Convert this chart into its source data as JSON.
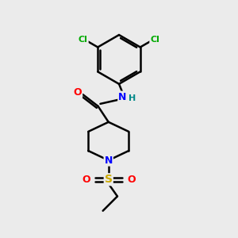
{
  "bg_color": "#ebebeb",
  "atom_colors": {
    "C": "#000000",
    "N": "#0000ff",
    "O": "#ff0000",
    "S": "#ccaa00",
    "Cl": "#00aa00",
    "H": "#008888"
  },
  "bond_color": "#000000",
  "bond_width": 1.8,
  "figsize": [
    3.0,
    3.0
  ],
  "dpi": 100
}
